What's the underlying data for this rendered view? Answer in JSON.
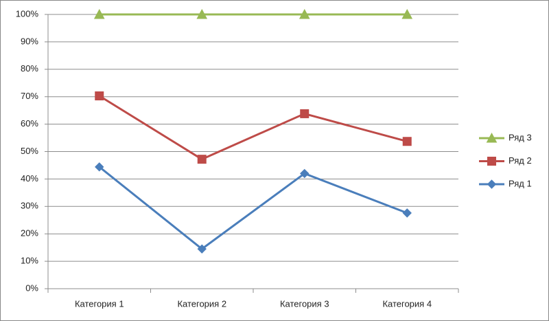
{
  "chart_data": {
    "type": "line",
    "stacking": "percent",
    "categories": [
      "Категория 1",
      "Категория 2",
      "Категория 3",
      "Категория 4"
    ],
    "series": [
      {
        "name": "Ряд 1",
        "color": "#4a7ebb",
        "marker": "diamond",
        "values": [
          44.4,
          14.5,
          42.0,
          27.6
        ]
      },
      {
        "name": "Ряд 2",
        "color": "#be4b48",
        "marker": "square",
        "values": [
          25.9,
          32.7,
          21.8,
          26.1
        ]
      },
      {
        "name": "Ряд 3",
        "color": "#98b954",
        "marker": "triangle",
        "values": [
          29.7,
          52.8,
          36.2,
          46.3
        ]
      }
    ],
    "ylim": [
      0,
      100
    ],
    "yticks": [
      {
        "value": 0,
        "label": "0%"
      },
      {
        "value": 10,
        "label": "10%"
      },
      {
        "value": 20,
        "label": "20%"
      },
      {
        "value": 30,
        "label": "30%"
      },
      {
        "value": 40,
        "label": "40%"
      },
      {
        "value": 50,
        "label": "50%"
      },
      {
        "value": 60,
        "label": "60%"
      },
      {
        "value": 70,
        "label": "70%"
      },
      {
        "value": 80,
        "label": "80%"
      },
      {
        "value": 90,
        "label": "90%"
      },
      {
        "value": 100,
        "label": "100%"
      }
    ],
    "grid": true,
    "legend": "right"
  }
}
